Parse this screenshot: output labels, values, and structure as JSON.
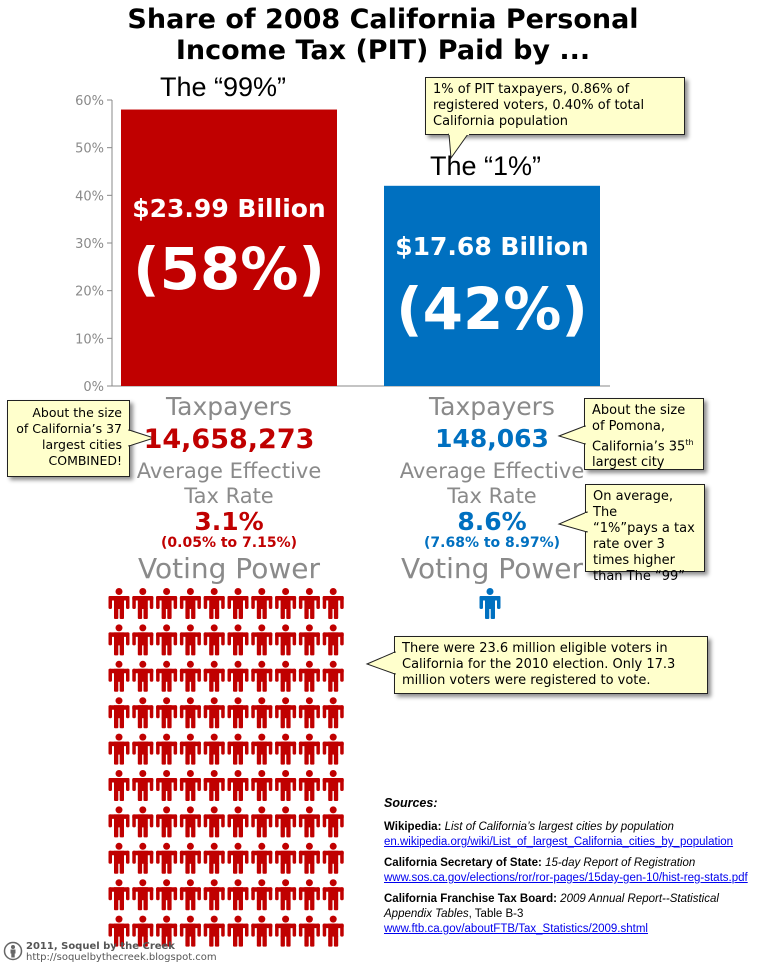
{
  "title_line1": "Share of 2008 California Personal",
  "title_line2": "Income Tax (PIT) Paid by ...",
  "colors": {
    "red": "#c00000",
    "blue": "#0070c0",
    "callout_bg": "#ffffcc",
    "grey_text": "#8a8a8a"
  },
  "chart_data": {
    "type": "bar",
    "title": "Share of 2008 California Personal Income Tax (PIT) Paid by ...",
    "categories": [
      "The “99%”",
      "The “1%”"
    ],
    "values": [
      58,
      42
    ],
    "value_labels": [
      "$23.99 Billion",
      "$17.68 Billion"
    ],
    "percent_labels": [
      "(58%)",
      "(42%)"
    ],
    "ylim": [
      0,
      60
    ],
    "yticks": [
      "0%",
      "10%",
      "20%",
      "30%",
      "40%",
      "50%",
      "60%"
    ],
    "grid": false
  },
  "callouts": {
    "one_percent": "1% of PIT taxpayers, 0.86% of registered voters, 0.40% of total California population",
    "cities_line1": "About the size",
    "cities_line2": "of California’s 37",
    "cities_line3": "largest cities",
    "cities_line4": "COMBINED!",
    "pomona_line1": "About the size",
    "pomona_line2": "of Pomona,",
    "pomona_line3": "California’s 35",
    "pomona_sup": "th",
    "pomona_line4": "largest city",
    "rate_line1": "On average, The",
    "rate_line2": "“1%”pays a tax",
    "rate_line3": "rate over 3",
    "rate_line4": "times higher",
    "rate_line5": "than The “99”",
    "voters": "There were 23.6 million eligible voters in California for the 2010 election. Only 17.3 million voters were registered to vote."
  },
  "left_stats": {
    "taxpayers_label": "Taxpayers",
    "taxpayers": "14,658,273",
    "rate_label_1": "Average Effective",
    "rate_label_2": "Tax Rate",
    "rate": "3.1%",
    "rate_range": "(0.05% to 7.15%)",
    "voting_label": "Voting Power",
    "voting_icons": 100
  },
  "right_stats": {
    "taxpayers_label": "Taxpayers",
    "taxpayers": "148,063",
    "rate_label_1": "Average Effective",
    "rate_label_2": "Tax Rate",
    "rate": "8.6%",
    "rate_range": "(7.68% to 8.97%)",
    "voting_label": "Voting Power",
    "voting_icons": 1
  },
  "sources": {
    "heading": "Sources:",
    "s1_org": "Wikipedia:",
    "s1_title": "List of California’s largest cities by population",
    "s1_url": "en.wikipedia.org/wiki/List_of_largest_California_cities_by_population",
    "s2_org": "California Secretary of State:",
    "s2_title": "15-day Report of Registration",
    "s2_url": "www.sos.ca.gov/elections/ror/ror-pages/15day-gen-10/hist-reg-stats.pdf",
    "s3_org": "California Franchise Tax Board:",
    "s3_title": "2009 Annual Report--Statistical Appendix Tables",
    "s3_rest": ", Table B-3",
    "s3_url": "www.ftb.ca.gov/aboutFTB/Tax_Statistics/2009.shtml"
  },
  "footer": {
    "line1": "2011, Soquel by the Creek",
    "line2": "http://soquelbythecreek.blogspot.com"
  }
}
